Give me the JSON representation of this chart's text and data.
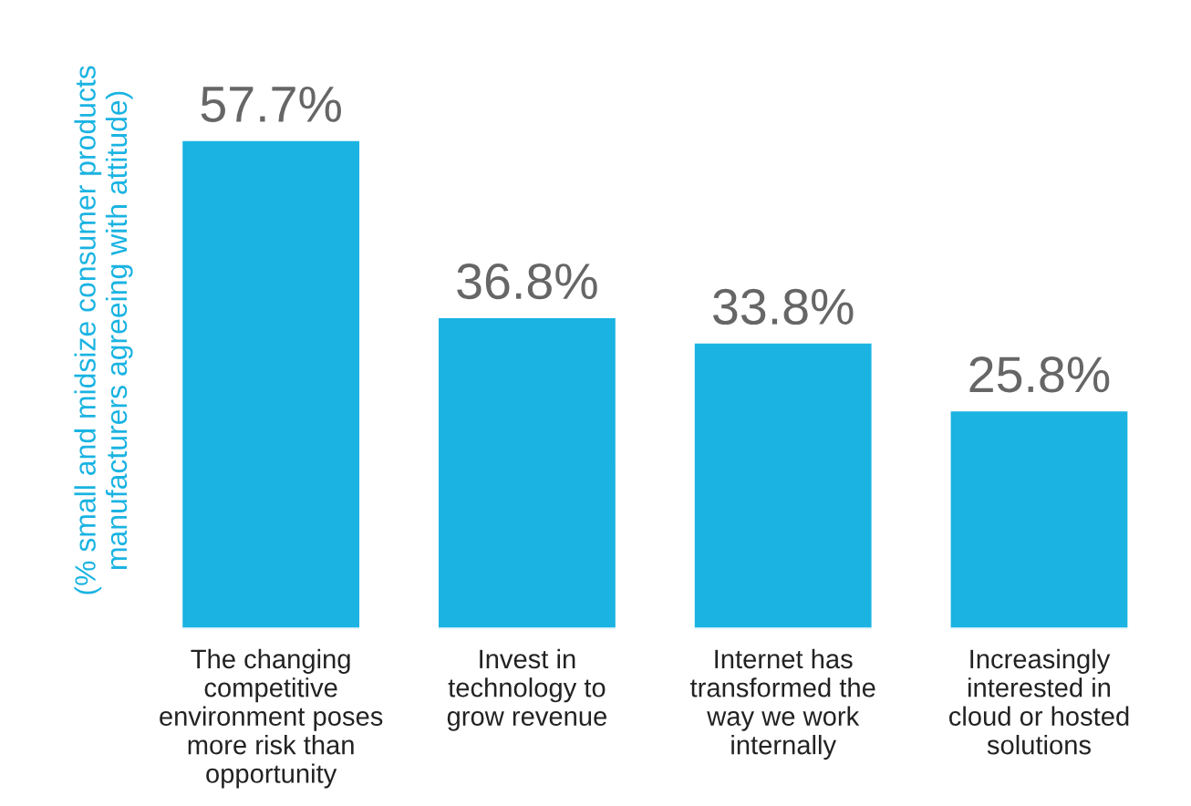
{
  "chart_data": {
    "type": "bar",
    "ylabel": "(% small and midsize consumer products\nmanufacturers agreeing with attitude)",
    "categories": [
      "The changing\ncompetitive\nenvironment poses\nmore risk than\nopportunity",
      "Invest in\ntechnology to\ngrow revenue",
      "Internet has\ntransformed the\nway we work\ninternally",
      "Increasingly\ninterested in\ncloud or hosted\nsolutions"
    ],
    "values": [
      57.7,
      36.8,
      33.8,
      25.8
    ],
    "value_labels": [
      "57.7%",
      "36.8%",
      "33.8%",
      "25.8%"
    ],
    "color": "#1ab3e2"
  }
}
